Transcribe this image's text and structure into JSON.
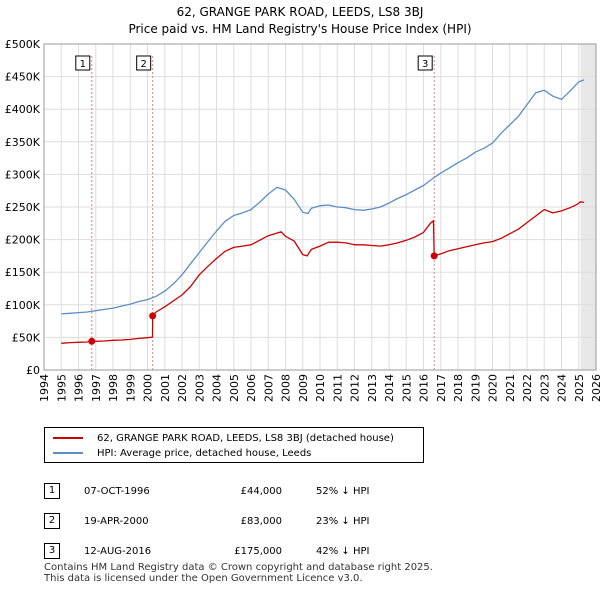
{
  "title_line1": "62, GRANGE PARK ROAD, LEEDS, LS8 3BJ",
  "title_line2": "Price paid vs. HM Land Registry's House Price Index (HPI)",
  "chart_data": {
    "type": "line",
    "title": "62, GRANGE PARK ROAD, LEEDS, LS8 3BJ — Price paid vs. HM Land Registry's House Price Index (HPI)",
    "xlabel": "",
    "ylabel": "",
    "xlim": [
      1994,
      2026
    ],
    "ylim": [
      0,
      500000
    ],
    "x_ticks": [
      "1994",
      "1995",
      "1996",
      "1997",
      "1998",
      "1999",
      "2000",
      "2001",
      "2002",
      "2003",
      "2004",
      "2005",
      "2006",
      "2007",
      "2008",
      "2009",
      "2010",
      "2011",
      "2012",
      "2013",
      "2014",
      "2015",
      "2016",
      "2017",
      "2018",
      "2019",
      "2020",
      "2021",
      "2022",
      "2023",
      "2024",
      "2025",
      "2026"
    ],
    "y_ticks": [
      {
        "value": 0,
        "label": "£0"
      },
      {
        "value": 50000,
        "label": "£50K"
      },
      {
        "value": 100000,
        "label": "£100K"
      },
      {
        "value": 150000,
        "label": "£150K"
      },
      {
        "value": 200000,
        "label": "£200K"
      },
      {
        "value": 250000,
        "label": "£250K"
      },
      {
        "value": 300000,
        "label": "£300K"
      },
      {
        "value": 350000,
        "label": "£350K"
      },
      {
        "value": 400000,
        "label": "£400K"
      },
      {
        "value": 450000,
        "label": "£450K"
      },
      {
        "value": 500000,
        "label": "£500K"
      }
    ],
    "grid": true,
    "series": [
      {
        "name": "62, GRANGE PARK ROAD, LEEDS, LS8 3BJ (detached house)",
        "color": "#cc0000",
        "x": [
          1995.0,
          1995.5,
          1996.0,
          1996.5,
          1996.77,
          1997.0,
          1997.5,
          1998.0,
          1998.5,
          1999.0,
          1999.5,
          2000.0,
          2000.29,
          2000.3,
          2000.5,
          2001.0,
          2001.5,
          2002.0,
          2002.5,
          2003.0,
          2003.5,
          2004.0,
          2004.5,
          2005.0,
          2005.5,
          2006.0,
          2006.5,
          2007.0,
          2007.5,
          2007.75,
          2008.0,
          2008.5,
          2009.0,
          2009.25,
          2009.5,
          2010.0,
          2010.5,
          2011.0,
          2011.5,
          2012.0,
          2012.5,
          2013.0,
          2013.5,
          2014.0,
          2014.5,
          2015.0,
          2015.5,
          2016.0,
          2016.4,
          2016.58,
          2016.62,
          2017.0,
          2017.5,
          2018.0,
          2018.5,
          2019.0,
          2019.5,
          2020.0,
          2020.5,
          2021.0,
          2021.5,
          2022.0,
          2022.5,
          2022.9,
          2023.0,
          2023.5,
          2024.0,
          2024.5,
          2024.9,
          2025.1,
          2025.3
        ],
        "values": [
          41000,
          42000,
          42500,
          43000,
          44000,
          44000,
          44500,
          45500,
          46000,
          47000,
          48500,
          49500,
          50500,
          83000,
          89000,
          97000,
          106000,
          115000,
          128000,
          146000,
          159000,
          171000,
          182000,
          188000,
          190000,
          192000,
          199000,
          206000,
          210000,
          212000,
          205000,
          198000,
          177000,
          175000,
          185000,
          190000,
          196000,
          196000,
          195000,
          192000,
          192000,
          191000,
          190000,
          192000,
          195000,
          199000,
          204000,
          211000,
          225000,
          229000,
          175000,
          178000,
          183000,
          186000,
          189000,
          192000,
          195000,
          197000,
          202000,
          209000,
          216000,
          226000,
          236000,
          244000,
          246000,
          241000,
          244000,
          249000,
          254000,
          258000,
          257000
        ]
      },
      {
        "name": "HPI: Average price, detached house, Leeds",
        "color": "#5b8ec6",
        "x": [
          1995.0,
          1995.5,
          1996.0,
          1996.5,
          1997.0,
          1997.5,
          1998.0,
          1998.5,
          1999.0,
          1999.5,
          2000.0,
          2000.5,
          2001.0,
          2001.5,
          2002.0,
          2002.5,
          2003.0,
          2003.5,
          2004.0,
          2004.5,
          2005.0,
          2005.5,
          2006.0,
          2006.5,
          2007.0,
          2007.5,
          2008.0,
          2008.5,
          2009.0,
          2009.3,
          2009.5,
          2010.0,
          2010.5,
          2011.0,
          2011.5,
          2012.0,
          2012.5,
          2013.0,
          2013.5,
          2014.0,
          2014.5,
          2015.0,
          2015.5,
          2016.0,
          2016.5,
          2017.0,
          2017.5,
          2018.0,
          2018.5,
          2019.0,
          2019.5,
          2020.0,
          2020.5,
          2021.0,
          2021.5,
          2022.0,
          2022.5,
          2023.0,
          2023.5,
          2024.0,
          2024.5,
          2025.0,
          2025.3
        ],
        "values": [
          86000,
          87000,
          88000,
          89000,
          91000,
          93000,
          95000,
          98000,
          101000,
          105000,
          108000,
          113000,
          121000,
          132000,
          146000,
          163000,
          180000,
          197000,
          213000,
          228000,
          237000,
          241000,
          246000,
          257000,
          270000,
          280000,
          276000,
          262000,
          242000,
          240000,
          248000,
          252000,
          253000,
          250000,
          249000,
          246000,
          245000,
          247000,
          250000,
          256000,
          263000,
          269000,
          276000,
          283000,
          293000,
          302000,
          310000,
          318000,
          325000,
          334000,
          340000,
          348000,
          363000,
          376000,
          389000,
          407000,
          425000,
          429000,
          420000,
          415000,
          428000,
          442000,
          445000
        ]
      }
    ],
    "sales": [
      {
        "label": "1",
        "x": 1996.77,
        "value": 44000
      },
      {
        "label": "2",
        "x": 2000.3,
        "value": 83000
      },
      {
        "label": "3",
        "x": 2016.62,
        "value": 175000
      }
    ],
    "shaded_region": {
      "from": 2025.1,
      "to": 2026
    }
  },
  "legend": {
    "property_label": "62, GRANGE PARK ROAD, LEEDS, LS8 3BJ (detached house)",
    "hpi_label": "HPI: Average price, detached house, Leeds",
    "property_color": "#cc0000",
    "hpi_color": "#5b8ec6"
  },
  "transactions": [
    {
      "num": "1",
      "date": "07-OCT-1996",
      "price": "£44,000",
      "hpi": "52% ↓ HPI"
    },
    {
      "num": "2",
      "date": "19-APR-2000",
      "price": "£83,000",
      "hpi": "23% ↓ HPI"
    },
    {
      "num": "3",
      "date": "12-AUG-2016",
      "price": "£175,000",
      "hpi": "42% ↓ HPI"
    }
  ],
  "footer_line1": "Contains HM Land Registry data © Crown copyright and database right 2025.",
  "footer_line2": "This data is licensed under the Open Government Licence v3.0."
}
